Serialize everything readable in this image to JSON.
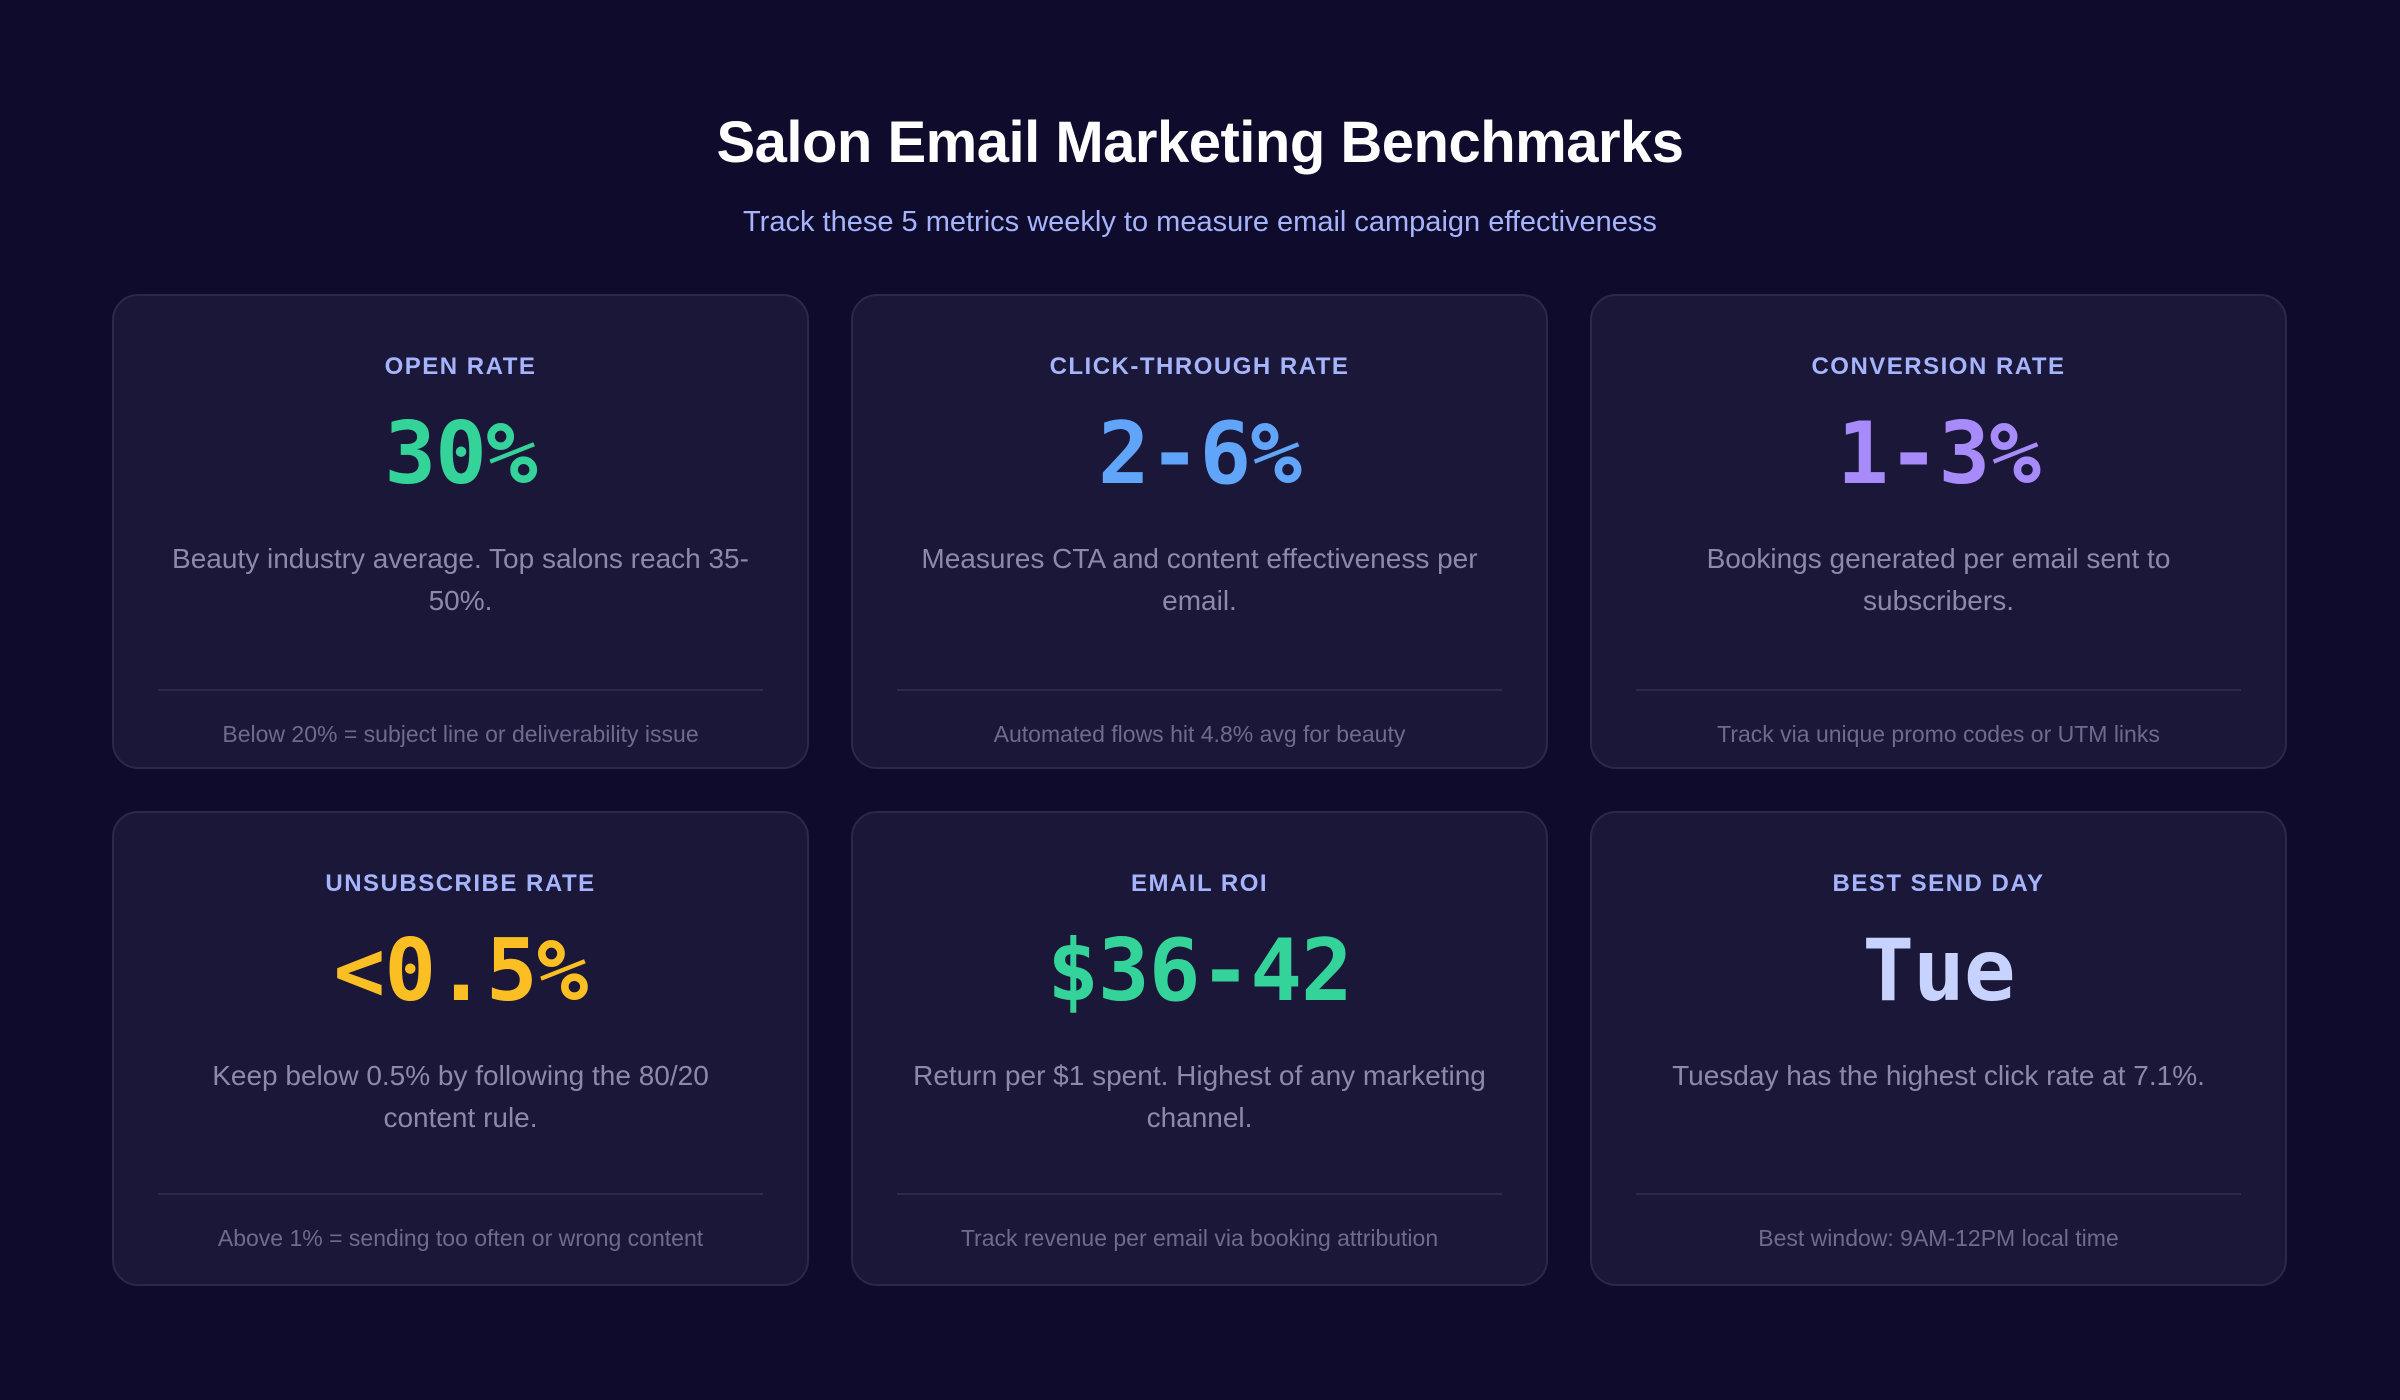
{
  "header": {
    "title": "Salon Email Marketing Benchmarks",
    "subtitle": "Track these 5 metrics weekly to measure email campaign effectiveness"
  },
  "colors": {
    "background": "#0f0b2c",
    "card": "#1b1739",
    "label": "#a5b4fc",
    "green": "#34d399",
    "blue": "#60a5fa",
    "purple": "#a78bfa",
    "yellow": "#fbbf24",
    "indigo_light": "#c7d2fe"
  },
  "cards": [
    {
      "label": "OPEN RATE",
      "value": "30%",
      "value_color": "#34d399",
      "description": "Beauty industry average. Top salons reach 35-50%.",
      "footnote": "Below 20% = subject line or deliverability issue"
    },
    {
      "label": "CLICK-THROUGH RATE",
      "value": "2-6%",
      "value_color": "#60a5fa",
      "description": "Measures CTA and content effectiveness per email.",
      "footnote": "Automated flows hit 4.8% avg for beauty"
    },
    {
      "label": "CONVERSION RATE",
      "value": "1-3%",
      "value_color": "#a78bfa",
      "description": "Bookings generated per email sent to subscribers.",
      "footnote": "Track via unique promo codes or UTM links"
    },
    {
      "label": "UNSUBSCRIBE RATE",
      "value": "<0.5%",
      "value_color": "#fbbf24",
      "description": "Keep below 0.5% by following the 80/20 content rule.",
      "footnote": "Above 1% = sending too often or wrong content"
    },
    {
      "label": "EMAIL ROI",
      "value": "$36-42",
      "value_color": "#34d399",
      "description": "Return per $1 spent. Highest of any marketing channel.",
      "footnote": "Track revenue per email via booking attribution"
    },
    {
      "label": "BEST SEND DAY",
      "value": "Tue",
      "value_color": "#c7d2fe",
      "description": "Tuesday has the highest click rate at 7.1%.",
      "footnote": "Best window: 9AM-12PM local time"
    }
  ]
}
